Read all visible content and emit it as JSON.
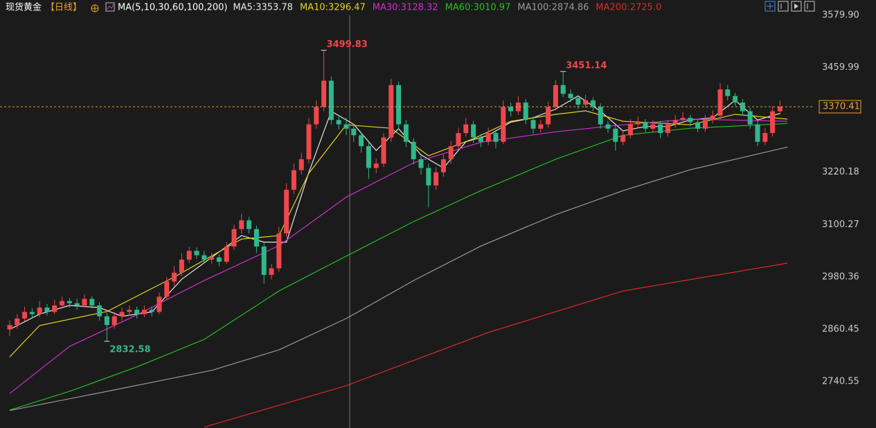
{
  "chart_data": {
    "type": "candlestick",
    "title": "现货黄金",
    "period": "【日线】",
    "indicator": "MA(5,10,30,60,100,200)",
    "ylim": [
      2634,
      3615
    ],
    "yticks": [
      {
        "value": 3579.9,
        "label": "3579.90"
      },
      3459.99,
      3220.18,
      3100.27,
      2980.36,
      2860.45,
      2740.55
    ],
    "up_color": "#f0474b",
    "down_color": "#2fb88b",
    "last_color": "#f0a030",
    "candles": [
      [
        2860,
        2880,
        2845,
        2870
      ],
      [
        2870,
        2895,
        2862,
        2885
      ],
      [
        2885,
        2912,
        2878,
        2900
      ],
      [
        2900,
        2908,
        2885,
        2895
      ],
      [
        2895,
        2925,
        2888,
        2910
      ],
      [
        2910,
        2918,
        2892,
        2900
      ],
      [
        2900,
        2928,
        2895,
        2915
      ],
      [
        2915,
        2935,
        2908,
        2925
      ],
      [
        2925,
        2932,
        2910,
        2920
      ],
      [
        2920,
        2930,
        2905,
        2915
      ],
      [
        2915,
        2940,
        2910,
        2930
      ],
      [
        2930,
        2936,
        2908,
        2915
      ],
      [
        2915,
        2922,
        2880,
        2890
      ],
      [
        2890,
        2898,
        2832.58,
        2870
      ],
      [
        2870,
        2900,
        2862,
        2890
      ],
      [
        2890,
        2910,
        2880,
        2900
      ],
      [
        2900,
        2915,
        2892,
        2905
      ],
      [
        2905,
        2912,
        2885,
        2895
      ],
      [
        2895,
        2915,
        2888,
        2905
      ],
      [
        2905,
        2912,
        2890,
        2900
      ],
      [
        2900,
        2945,
        2895,
        2935
      ],
      [
        2935,
        2980,
        2928,
        2970
      ],
      [
        2970,
        3005,
        2960,
        2990
      ],
      [
        2990,
        3035,
        2982,
        3020
      ],
      [
        3020,
        3050,
        3012,
        3040
      ],
      [
        3040,
        3048,
        3022,
        3030
      ],
      [
        3030,
        3040,
        3012,
        3020
      ],
      [
        3020,
        3035,
        3010,
        3025
      ],
      [
        3025,
        3032,
        3005,
        3015
      ],
      [
        3015,
        3060,
        3010,
        3050
      ],
      [
        3050,
        3100,
        3042,
        3090
      ],
      [
        3090,
        3125,
        3080,
        3110
      ],
      [
        3110,
        3118,
        3080,
        3090
      ],
      [
        3090,
        3098,
        3035,
        3050
      ],
      [
        3050,
        3058,
        2965,
        2985
      ],
      [
        2985,
        3010,
        2975,
        3000
      ],
      [
        3000,
        3095,
        2992,
        3080
      ],
      [
        3080,
        3195,
        3072,
        3180
      ],
      [
        3180,
        3240,
        3170,
        3225
      ],
      [
        3225,
        3265,
        3215,
        3250
      ],
      [
        3250,
        3345,
        3240,
        3330
      ],
      [
        3330,
        3385,
        3320,
        3370
      ],
      [
        3370,
        3499.83,
        3360,
        3430
      ],
      [
        3430,
        3440,
        3330,
        3340
      ],
      [
        3340,
        3352,
        3318,
        3330
      ],
      [
        3330,
        3345,
        3305,
        3320
      ],
      [
        3320,
        3330,
        3290,
        3305
      ],
      [
        3305,
        3312,
        3265,
        3280
      ],
      [
        3280,
        3290,
        3205,
        3230
      ],
      [
        3230,
        3252,
        3218,
        3240
      ],
      [
        3240,
        3310,
        3232,
        3300
      ],
      [
        3300,
        3435,
        3290,
        3420
      ],
      [
        3420,
        3428,
        3318,
        3330
      ],
      [
        3330,
        3340,
        3278,
        3290
      ],
      [
        3290,
        3298,
        3238,
        3250
      ],
      [
        3250,
        3258,
        3215,
        3230
      ],
      [
        3230,
        3240,
        3140,
        3190
      ],
      [
        3190,
        3232,
        3180,
        3220
      ],
      [
        3220,
        3262,
        3210,
        3250
      ],
      [
        3250,
        3292,
        3240,
        3280
      ],
      [
        3280,
        3322,
        3272,
        3310
      ],
      [
        3310,
        3345,
        3302,
        3330
      ],
      [
        3330,
        3338,
        3288,
        3300
      ],
      [
        3300,
        3308,
        3278,
        3290
      ],
      [
        3290,
        3322,
        3282,
        3310
      ],
      [
        3310,
        3318,
        3275,
        3290
      ],
      [
        3290,
        3385,
        3285,
        3370
      ],
      [
        3370,
        3380,
        3348,
        3360
      ],
      [
        3360,
        3395,
        3352,
        3380
      ],
      [
        3380,
        3388,
        3330,
        3340
      ],
      [
        3340,
        3348,
        3308,
        3320
      ],
      [
        3320,
        3340,
        3312,
        3330
      ],
      [
        3330,
        3382,
        3322,
        3370
      ],
      [
        3370,
        3432,
        3362,
        3420
      ],
      [
        3420,
        3451.14,
        3392,
        3400
      ],
      [
        3400,
        3410,
        3380,
        3390
      ],
      [
        3390,
        3398,
        3365,
        3375
      ],
      [
        3375,
        3398,
        3368,
        3385
      ],
      [
        3385,
        3392,
        3360,
        3370
      ],
      [
        3370,
        3378,
        3320,
        3330
      ],
      [
        3330,
        3338,
        3310,
        3320
      ],
      [
        3320,
        3328,
        3270,
        3290
      ],
      [
        3290,
        3315,
        3282,
        3305
      ],
      [
        3305,
        3342,
        3298,
        3330
      ],
      [
        3330,
        3348,
        3322,
        3335
      ],
      [
        3335,
        3342,
        3312,
        3320
      ],
      [
        3320,
        3340,
        3312,
        3330
      ],
      [
        3330,
        3338,
        3298,
        3310
      ],
      [
        3310,
        3340,
        3302,
        3330
      ],
      [
        3330,
        3352,
        3322,
        3340
      ],
      [
        3340,
        3358,
        3332,
        3345
      ],
      [
        3345,
        3352,
        3326,
        3335
      ],
      [
        3335,
        3342,
        3312,
        3320
      ],
      [
        3320,
        3352,
        3312,
        3340
      ],
      [
        3340,
        3362,
        3332,
        3350
      ],
      [
        3350,
        3425,
        3342,
        3410
      ],
      [
        3410,
        3420,
        3385,
        3395
      ],
      [
        3395,
        3402,
        3372,
        3380
      ],
      [
        3380,
        3388,
        3350,
        3360
      ],
      [
        3360,
        3368,
        3320,
        3330
      ],
      [
        3330,
        3338,
        3280,
        3290
      ],
      [
        3290,
        3322,
        3282,
        3310
      ],
      [
        3310,
        3372,
        3302,
        3360
      ],
      [
        3360,
        3385,
        3352,
        3370.41
      ]
    ],
    "series": [
      {
        "name": "MA5:3353.78",
        "color": "#e8e8e8",
        "x": [
          0,
          4,
          8,
          12,
          15,
          19,
          23,
          27,
          31,
          34,
          37,
          40,
          43,
          46,
          49,
          52,
          55,
          58,
          61,
          64,
          67,
          70,
          73,
          76,
          79,
          82,
          85,
          88,
          91,
          94,
          97,
          100,
          103
        ],
        "values": [
          2860,
          2895,
          2915,
          2910,
          2890,
          2900,
          2975,
          3025,
          3075,
          3060,
          3060,
          3220,
          3360,
          3330,
          3270,
          3320,
          3260,
          3230,
          3290,
          3305,
          3335,
          3345,
          3365,
          3395,
          3360,
          3315,
          3325,
          3325,
          3340,
          3345,
          3385,
          3340,
          3355
        ]
      },
      {
        "name": "MA10:3296.47",
        "color": "#e6d21e",
        "x": [
          0,
          4,
          13,
          22,
          31,
          36,
          40,
          45,
          51,
          56,
          62,
          67,
          73,
          77,
          82,
          91,
          97,
          104
        ],
        "values": [
          2797,
          2869,
          2901,
          2980,
          3067,
          3075,
          3218,
          3329,
          3321,
          3258,
          3297,
          3337,
          3353,
          3361,
          3337,
          3329,
          3353,
          3342
        ]
      },
      {
        "name": "MA30:3128.32",
        "color": "#d030d0",
        "x": [
          0,
          8,
          17,
          26,
          36,
          45,
          54,
          63,
          73,
          82,
          91,
          104
        ],
        "values": [
          2713,
          2821,
          2893,
          2972,
          3052,
          3163,
          3242,
          3289,
          3313,
          3329,
          3342,
          3337
        ]
      },
      {
        "name": "MA60:3010.97",
        "color": "#22c022",
        "x": [
          0,
          8,
          17,
          26,
          36,
          45,
          54,
          63,
          73,
          82,
          91,
          104
        ],
        "values": [
          2675,
          2718,
          2774,
          2837,
          2948,
          3028,
          3107,
          3178,
          3250,
          3305,
          3321,
          3332
        ]
      },
      {
        "name": "MA100:2874.86",
        "color": "#9a9a9a",
        "x": [
          0,
          13,
          27,
          36,
          45,
          54,
          63,
          73,
          82,
          91,
          104
        ],
        "values": [
          2674,
          2718,
          2766,
          2813,
          2885,
          2972,
          3051,
          3123,
          3178,
          3226,
          3278
        ]
      },
      {
        "name": "MA200:2725.0",
        "color": "#e02a2a",
        "x": [
          26,
          45,
          64,
          82,
          104
        ],
        "values": [
          2636,
          2731,
          2853,
          2948,
          3012
        ]
      }
    ]
  }
}
